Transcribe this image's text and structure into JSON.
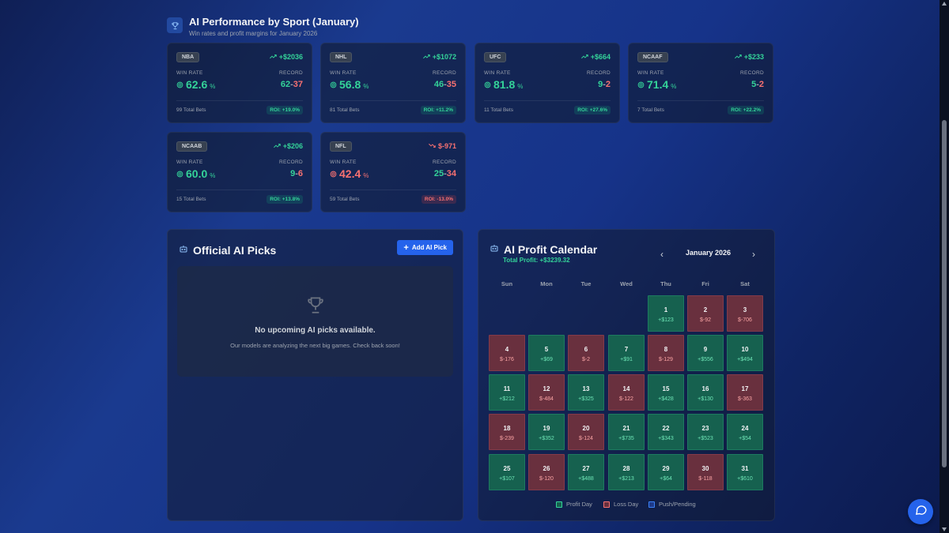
{
  "performance": {
    "title": "AI Performance by Sport (January)",
    "subtitle": "Win rates and profit margins for January 2026",
    "win_rate_label": "WIN RATE",
    "record_label": "RECORD",
    "sports": [
      {
        "name": "NBA",
        "profit": "+$2036",
        "rate": "62.6",
        "wins": "62",
        "losses": "37",
        "total": "99 Total Bets",
        "roi": "ROI: +19.0%",
        "positive": true
      },
      {
        "name": "NHL",
        "profit": "+$1072",
        "rate": "56.8",
        "wins": "46",
        "losses": "35",
        "total": "81 Total Bets",
        "roi": "ROI: +11.2%",
        "positive": true
      },
      {
        "name": "UFC",
        "profit": "+$664",
        "rate": "81.8",
        "wins": "9",
        "losses": "2",
        "total": "11 Total Bets",
        "roi": "ROI: +27.6%",
        "positive": true
      },
      {
        "name": "NCAAF",
        "profit": "+$233",
        "rate": "71.4",
        "wins": "5",
        "losses": "2",
        "total": "7 Total Bets",
        "roi": "ROI: +22.2%",
        "positive": true
      },
      {
        "name": "NCAAB",
        "profit": "+$206",
        "rate": "60.0",
        "wins": "9",
        "losses": "6",
        "total": "15 Total Bets",
        "roi": "ROI: +13.8%",
        "positive": true
      },
      {
        "name": "NFL",
        "profit": "$-971",
        "rate": "42.4",
        "wins": "25",
        "losses": "34",
        "total": "59 Total Bets",
        "roi": "ROI: -13.0%",
        "positive": false
      }
    ]
  },
  "picks": {
    "title": "Official AI Picks",
    "add_label": "Add AI Pick",
    "empty_title": "No upcoming AI picks available.",
    "empty_sub": "Our models are analyzing the next big games. Check back soon!"
  },
  "calendar": {
    "title": "AI Profit Calendar",
    "total": "Total Profit: +$3239.32",
    "month": "January 2026",
    "prev": "‹",
    "next": "›",
    "weekdays": [
      "Sun",
      "Mon",
      "Tue",
      "Wed",
      "Thu",
      "Fri",
      "Sat"
    ],
    "start_offset": 4,
    "days": [
      {
        "d": "1",
        "v": "+$123",
        "win": true
      },
      {
        "d": "2",
        "v": "$-92",
        "win": false
      },
      {
        "d": "3",
        "v": "$-706",
        "win": false
      },
      {
        "d": "4",
        "v": "$-176",
        "win": false
      },
      {
        "d": "5",
        "v": "+$69",
        "win": true
      },
      {
        "d": "6",
        "v": "$-2",
        "win": false
      },
      {
        "d": "7",
        "v": "+$91",
        "win": true
      },
      {
        "d": "8",
        "v": "$-129",
        "win": false
      },
      {
        "d": "9",
        "v": "+$556",
        "win": true
      },
      {
        "d": "10",
        "v": "+$494",
        "win": true
      },
      {
        "d": "11",
        "v": "+$212",
        "win": true
      },
      {
        "d": "12",
        "v": "$-484",
        "win": false
      },
      {
        "d": "13",
        "v": "+$325",
        "win": true
      },
      {
        "d": "14",
        "v": "$-122",
        "win": false
      },
      {
        "d": "15",
        "v": "+$428",
        "win": true
      },
      {
        "d": "16",
        "v": "+$130",
        "win": true
      },
      {
        "d": "17",
        "v": "$-363",
        "win": false
      },
      {
        "d": "18",
        "v": "$-239",
        "win": false
      },
      {
        "d": "19",
        "v": "+$352",
        "win": true
      },
      {
        "d": "20",
        "v": "$-124",
        "win": false
      },
      {
        "d": "21",
        "v": "+$735",
        "win": true
      },
      {
        "d": "22",
        "v": "+$343",
        "win": true
      },
      {
        "d": "23",
        "v": "+$523",
        "win": true
      },
      {
        "d": "24",
        "v": "+$54",
        "win": true
      },
      {
        "d": "25",
        "v": "+$107",
        "win": true
      },
      {
        "d": "26",
        "v": "$-120",
        "win": false
      },
      {
        "d": "27",
        "v": "+$488",
        "win": true
      },
      {
        "d": "28",
        "v": "+$213",
        "win": true
      },
      {
        "d": "29",
        "v": "+$64",
        "win": true
      },
      {
        "d": "30",
        "v": "$-118",
        "win": false
      },
      {
        "d": "31",
        "v": "+$610",
        "win": true
      }
    ],
    "legend": [
      {
        "label": "Profit Day",
        "color": "#16614f",
        "border": "#34d399"
      },
      {
        "label": "Loss Day",
        "color": "#69303e",
        "border": "#f87171"
      },
      {
        "label": "Push/Pending",
        "color": "#1e3a8a",
        "border": "#3b82f6"
      }
    ]
  }
}
